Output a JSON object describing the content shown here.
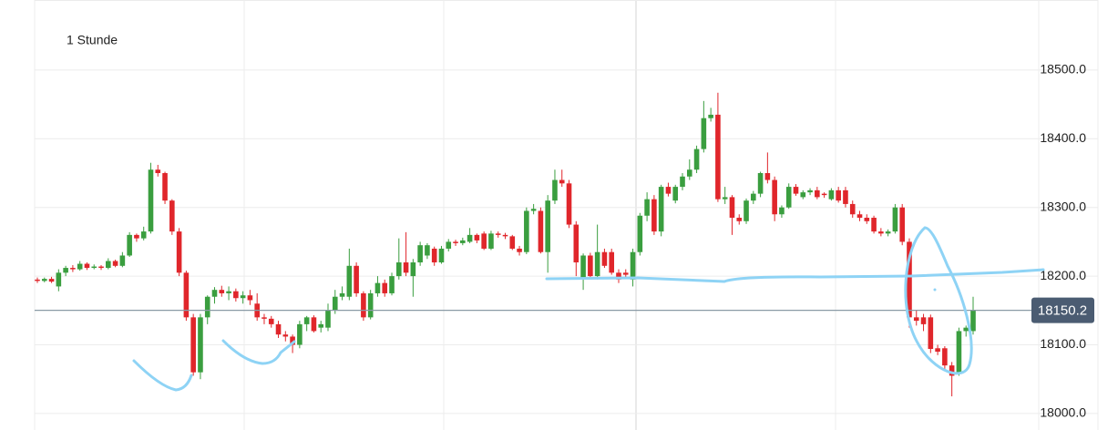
{
  "chart_data": {
    "type": "candlestick",
    "title": "1 Stunde",
    "open": [
      18195,
      18193,
      18196,
      18185,
      18205,
      18212,
      18210,
      18218,
      18212,
      18214,
      18212,
      18222,
      18215,
      18230,
      18260,
      18255,
      18265,
      18355,
      18350,
      18310,
      18265,
      18205,
      18140,
      18060,
      18140,
      18170,
      18180,
      18175,
      18178,
      18168,
      18172,
      18160,
      18140,
      18138,
      18130,
      18115,
      18112,
      18100,
      18130,
      18140,
      18125,
      18125,
      18150,
      18170,
      18170,
      18215,
      18175,
      18140,
      18175,
      18190,
      18175,
      18200,
      18220,
      18200,
      18220,
      18230,
      18240,
      18220,
      18240,
      18250,
      18248,
      18250,
      18260,
      18262,
      18240,
      18262,
      18260,
      18258,
      18240,
      18235,
      18295,
      18295,
      18235,
      18310,
      18340,
      18335,
      18275,
      18195,
      18230,
      18200,
      18235,
      18235,
      18205,
      18205,
      18195,
      18235,
      18288,
      18312,
      18265,
      18330,
      18310,
      18330,
      18345,
      18355,
      18385,
      18430,
      18435,
      18312,
      18315,
      18285,
      18280,
      18310,
      18320,
      18350,
      18340,
      18290,
      18300,
      18330,
      18315,
      18322,
      18325,
      18320,
      18312,
      18325,
      18325,
      18305,
      18290,
      18285,
      18285,
      18265,
      18262,
      18265,
      18300,
      18250,
      18140,
      18140,
      18140,
      18095,
      18095,
      18070,
      18060,
      18120,
      18120
    ],
    "high": [
      18198,
      18198,
      18199,
      18210,
      18215,
      18216,
      18222,
      18220,
      18217,
      18216,
      18226,
      18224,
      18235,
      18264,
      18262,
      18272,
      18365,
      18362,
      18352,
      18312,
      18270,
      18208,
      18145,
      18145,
      18172,
      18184,
      18186,
      18185,
      18182,
      18178,
      18180,
      18175,
      18145,
      18142,
      18135,
      18120,
      18115,
      18135,
      18142,
      18143,
      18135,
      18160,
      18180,
      18185,
      18240,
      18220,
      18178,
      18180,
      18200,
      18195,
      18205,
      18255,
      18264,
      18225,
      18250,
      18248,
      18243,
      18244,
      18254,
      18253,
      18256,
      18270,
      18262,
      18265,
      18266,
      18265,
      18263,
      18260,
      18244,
      18300,
      18305,
      18300,
      18318,
      18355,
      18355,
      18340,
      18280,
      18233,
      18234,
      18275,
      18240,
      18240,
      18210,
      18210,
      18240,
      18292,
      18322,
      18318,
      18333,
      18336,
      18333,
      18350,
      18370,
      18390,
      18455,
      18445,
      18467,
      18330,
      18318,
      18290,
      18313,
      18324,
      18352,
      18380,
      18345,
      18303,
      18335,
      18334,
      18325,
      18328,
      18330,
      18322,
      18328,
      18330,
      18330,
      18310,
      18295,
      18290,
      18288,
      18270,
      18268,
      18305,
      18305,
      18255,
      18150,
      18145,
      18144,
      18100,
      18098,
      18075,
      18125,
      18128,
      18170
    ],
    "low": [
      18190,
      18191,
      18190,
      18178,
      18200,
      18206,
      18208,
      18209,
      18210,
      18209,
      18210,
      18213,
      18213,
      18228,
      18250,
      18252,
      18262,
      18345,
      18305,
      18260,
      18200,
      18135,
      18055,
      18050,
      18130,
      18160,
      18170,
      18165,
      18163,
      18160,
      18158,
      18135,
      18130,
      18125,
      18110,
      18105,
      18088,
      18095,
      18120,
      18118,
      18118,
      18120,
      18145,
      18165,
      18165,
      18170,
      18135,
      18137,
      18170,
      18170,
      18172,
      18195,
      18200,
      18170,
      18215,
      18225,
      18215,
      18218,
      18236,
      18244,
      18245,
      18248,
      18248,
      18238,
      18238,
      18256,
      18254,
      18238,
      18230,
      18232,
      18290,
      18233,
      18205,
      18305,
      18330,
      18270,
      18200,
      18180,
      18195,
      18195,
      18212,
      18202,
      18190,
      18198,
      18185,
      18230,
      18280,
      18260,
      18258,
      18316,
      18306,
      18325,
      18340,
      18350,
      18380,
      18425,
      18308,
      18305,
      18260,
      18275,
      18276,
      18305,
      18315,
      18335,
      18280,
      18285,
      18298,
      18317,
      18312,
      18318,
      18312,
      18314,
      18310,
      18307,
      18300,
      18285,
      18280,
      18276,
      18262,
      18258,
      18258,
      18262,
      18245,
      18125,
      18128,
      18120,
      18088,
      18085,
      18065,
      18025,
      18055,
      18112,
      18115
    ],
    "close": [
      18193,
      18196,
      18192,
      18205,
      18212,
      18210,
      18218,
      18212,
      18214,
      18212,
      18222,
      18215,
      18230,
      18260,
      18255,
      18265,
      18355,
      18350,
      18310,
      18265,
      18205,
      18140,
      18060,
      18140,
      18170,
      18180,
      18175,
      18178,
      18168,
      18172,
      18165,
      18140,
      18138,
      18130,
      18115,
      18112,
      18100,
      18130,
      18140,
      18120,
      18130,
      18150,
      18170,
      18175,
      18215,
      18175,
      18140,
      18175,
      18190,
      18175,
      18200,
      18220,
      18205,
      18220,
      18245,
      18245,
      18220,
      18240,
      18250,
      18248,
      18252,
      18260,
      18252,
      18240,
      18262,
      18260,
      18258,
      18240,
      18235,
      18295,
      18298,
      18235,
      18310,
      18340,
      18335,
      18275,
      18220,
      18230,
      18200,
      18235,
      18215,
      18205,
      18195,
      18202,
      18235,
      18288,
      18312,
      18265,
      18330,
      18320,
      18330,
      18345,
      18355,
      18385,
      18430,
      18435,
      18312,
      18315,
      18285,
      18280,
      18310,
      18320,
      18350,
      18340,
      18290,
      18300,
      18330,
      18320,
      18322,
      18325,
      18315,
      18318,
      18325,
      18310,
      18305,
      18290,
      18285,
      18280,
      18265,
      18262,
      18265,
      18300,
      18250,
      18140,
      18135,
      18130,
      18094,
      18090,
      18070,
      18055,
      18120,
      18125,
      18150.2
    ],
    "up_color": "#3a9e3f",
    "down_color": "#e0262b",
    "last_price": 18150.2,
    "ylim": [
      17976,
      18602
    ],
    "yticks": [
      {
        "value": 18000,
        "label": "18000.0"
      },
      {
        "value": 18100,
        "label": "18100.0"
      },
      {
        "value": 18200,
        "label": "18200.0"
      },
      {
        "value": 18300,
        "label": "18300.0"
      },
      {
        "value": 18400,
        "label": "18400.0"
      },
      {
        "value": 18500,
        "label": "18500.0"
      }
    ],
    "grid": true
  }
}
